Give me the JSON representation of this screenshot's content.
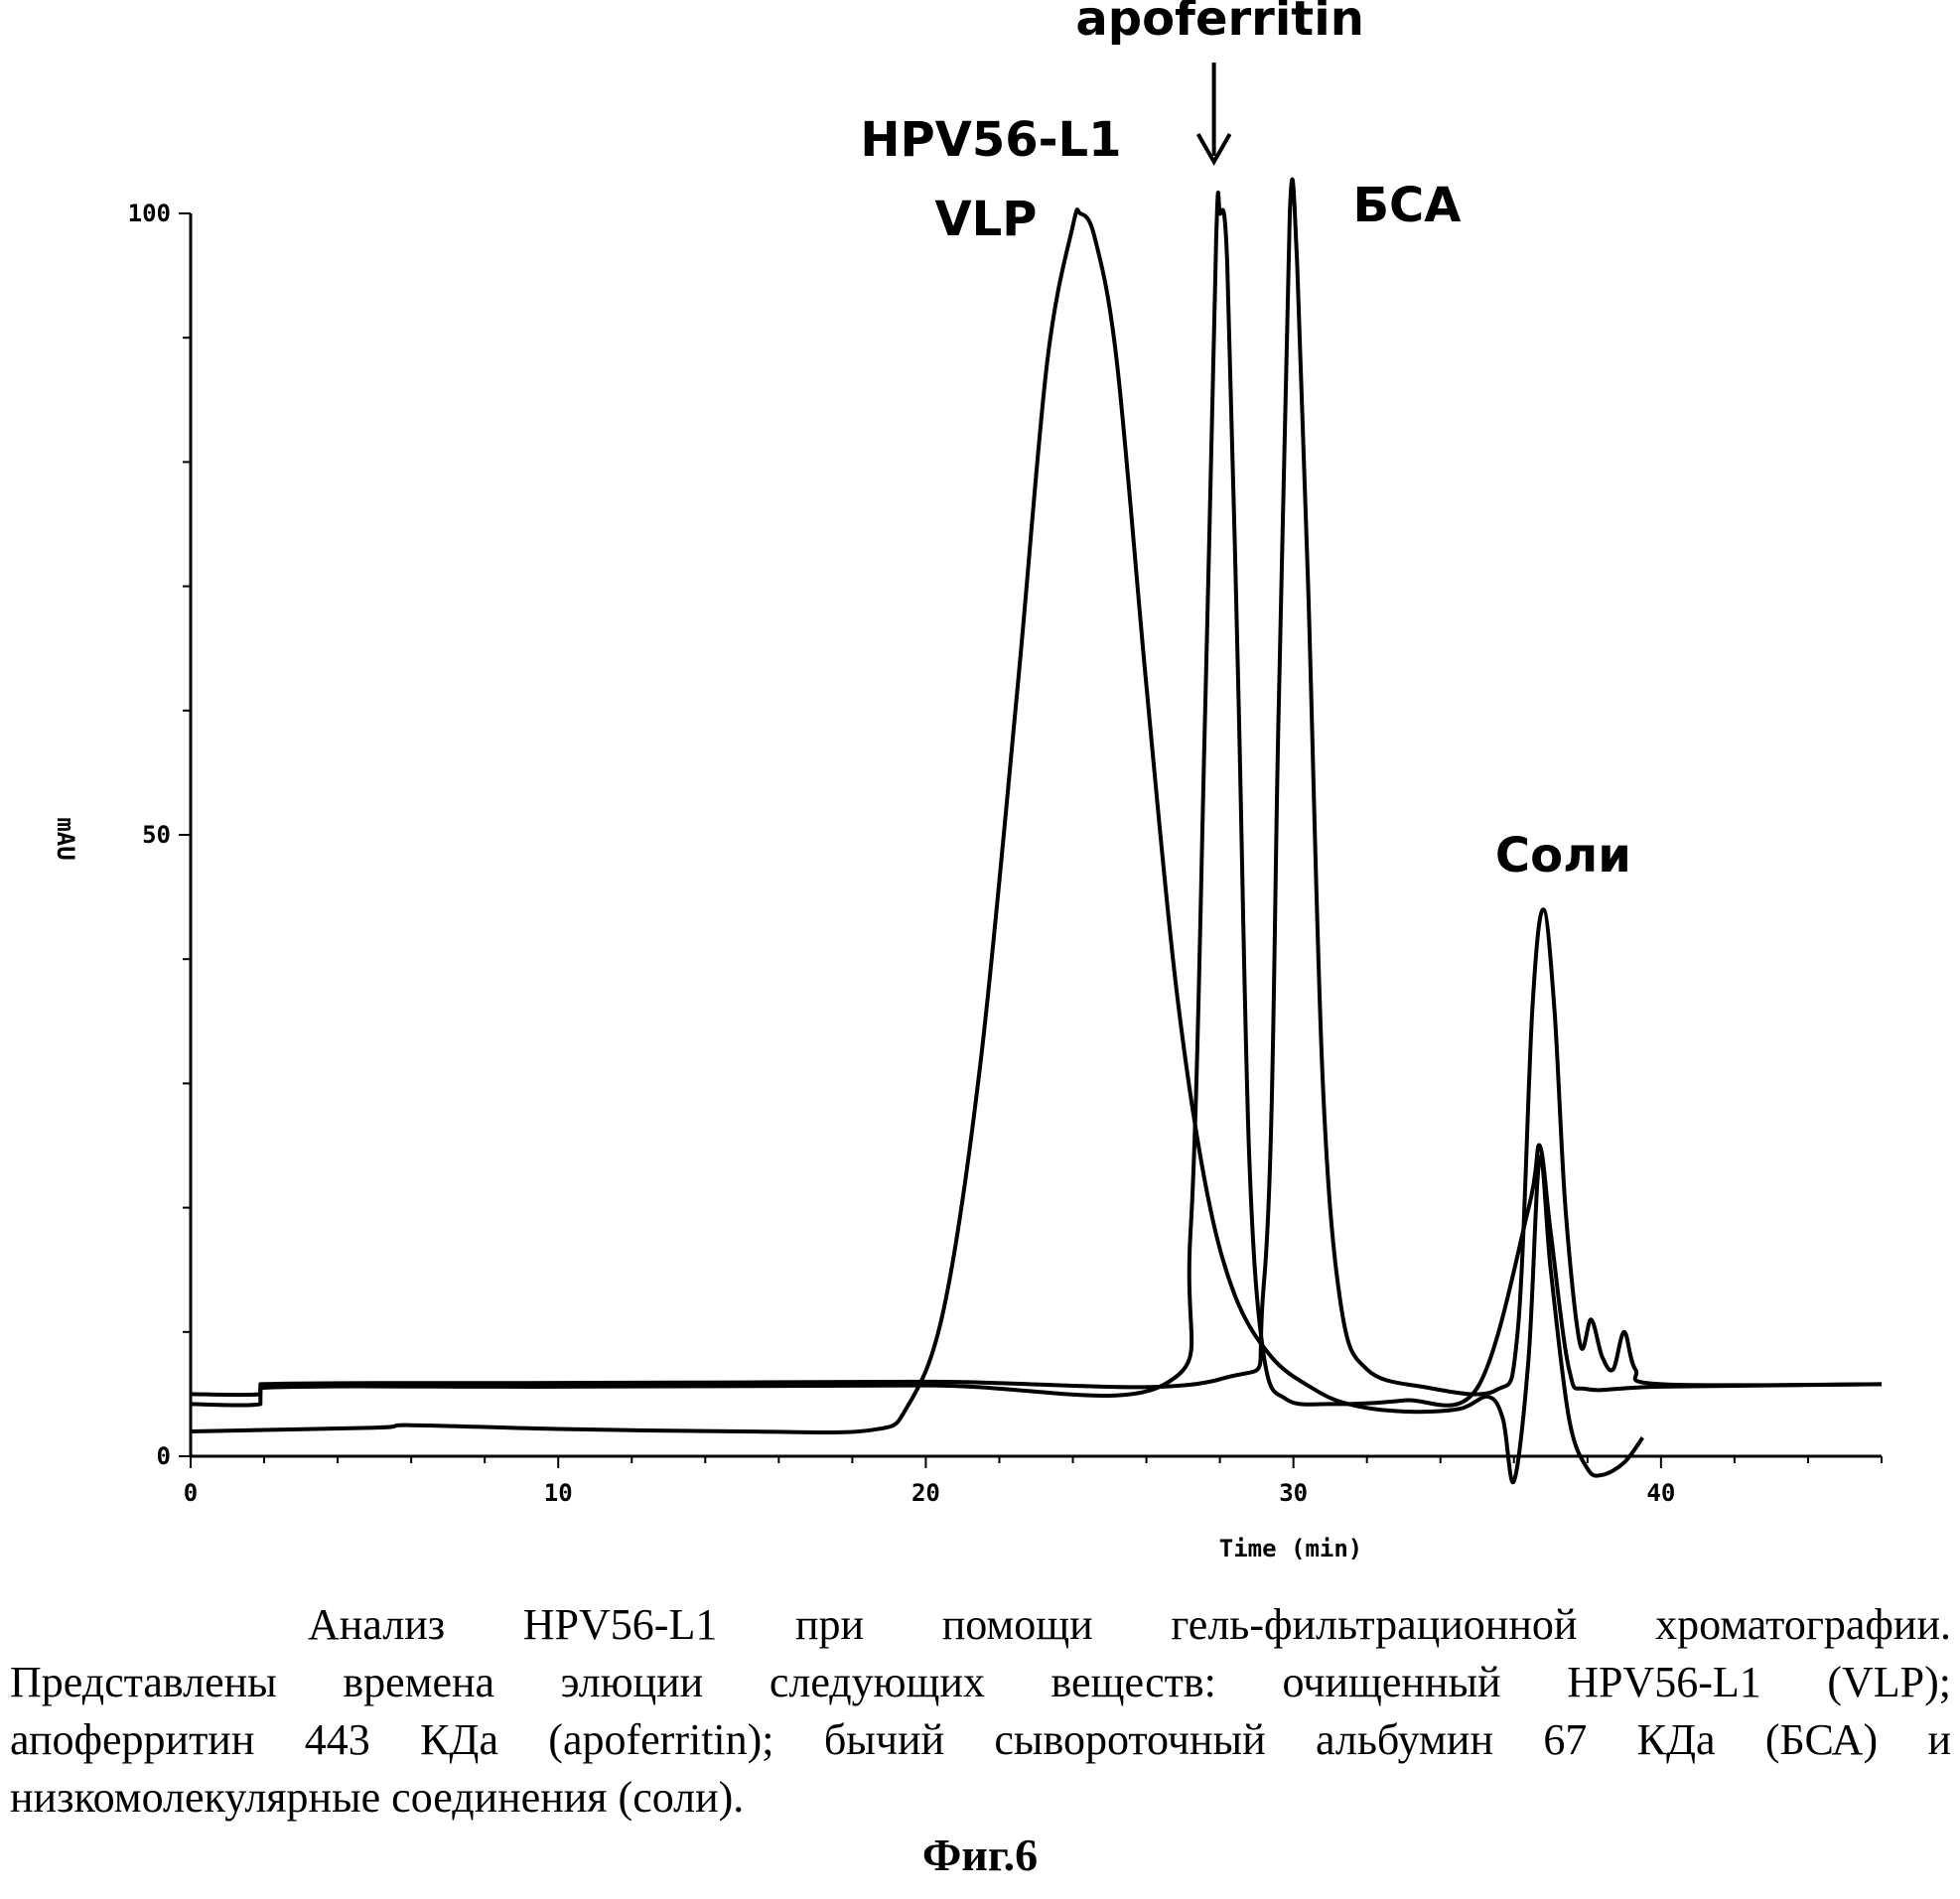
{
  "chart_data": {
    "type": "line",
    "title": "",
    "xlabel": "Time (min)",
    "ylabel": "mAU",
    "xlim": [
      0,
      46
    ],
    "ylim": [
      0,
      100
    ],
    "x_ticks": [
      0,
      10,
      20,
      30,
      40
    ],
    "y_ticks": [
      0,
      50,
      100
    ],
    "grid": false,
    "annotations": [
      {
        "text": "HPV56-L1",
        "x": 24.2,
        "y": 100
      },
      {
        "text": "VLP",
        "x": 24.2,
        "y": 100
      },
      {
        "text": "apoferritin",
        "x": 28.0,
        "y": 100,
        "arrow": true
      },
      {
        "text": "БСА",
        "x": 29.9,
        "y": 100
      },
      {
        "text": "Соли",
        "x": 36.8,
        "y": 44
      }
    ],
    "series": [
      {
        "values_xy": [
          [
            0,
            2.0
          ],
          [
            5,
            2.3
          ],
          [
            6,
            2.5
          ],
          [
            10,
            2.2
          ],
          [
            15,
            2.0
          ],
          [
            18.5,
            2.1
          ],
          [
            19.5,
            4
          ],
          [
            20.5,
            12
          ],
          [
            21.5,
            32
          ],
          [
            22.5,
            62
          ],
          [
            23.3,
            88
          ],
          [
            24.0,
            99
          ],
          [
            24.2,
            100
          ],
          [
            24.6,
            98
          ],
          [
            25.2,
            88
          ],
          [
            26.0,
            62
          ],
          [
            26.8,
            38
          ],
          [
            27.6,
            22
          ],
          [
            28.4,
            13
          ],
          [
            29.4,
            8
          ],
          [
            30.5,
            5.5
          ],
          [
            31.5,
            4.2
          ],
          [
            33,
            3.6
          ],
          [
            34.5,
            3.8
          ],
          [
            35.3,
            4.8
          ],
          [
            35.7,
            3
          ],
          [
            36.0,
            -2
          ],
          [
            36.4,
            8
          ],
          [
            36.7,
            24
          ],
          [
            37.0,
            15
          ],
          [
            37.5,
            3
          ],
          [
            38.0,
            -1
          ],
          [
            38.4,
            -1.5
          ],
          [
            39.0,
            -0.5
          ],
          [
            39.5,
            1.5
          ]
        ]
      },
      {
        "values_xy": [
          [
            0,
            4.2
          ],
          [
            1.9,
            4.2
          ],
          [
            1.9,
            5.5
          ],
          [
            10,
            5.6
          ],
          [
            20,
            5.7
          ],
          [
            26.5,
            5.8
          ],
          [
            27.2,
            18
          ],
          [
            27.6,
            60
          ],
          [
            27.9,
            98
          ],
          [
            28.0,
            100
          ],
          [
            28.2,
            96
          ],
          [
            28.5,
            62
          ],
          [
            28.8,
            24
          ],
          [
            29.2,
            8
          ],
          [
            29.8,
            4.6
          ],
          [
            31,
            4.2
          ],
          [
            33,
            4.5
          ],
          [
            35,
            5.5
          ],
          [
            36.4,
            20
          ],
          [
            36.7,
            25
          ],
          [
            37.0,
            18
          ],
          [
            37.5,
            7
          ],
          [
            38.0,
            5.4
          ],
          [
            40,
            5.6
          ],
          [
            46,
            5.8
          ]
        ]
      },
      {
        "values_xy": [
          [
            0,
            5
          ],
          [
            1.9,
            5
          ],
          [
            1.9,
            5.8
          ],
          [
            10,
            5.9
          ],
          [
            20,
            6
          ],
          [
            28,
            6.2
          ],
          [
            29.2,
            14
          ],
          [
            29.6,
            60
          ],
          [
            29.9,
            100
          ],
          [
            30.1,
            96
          ],
          [
            30.4,
            70
          ],
          [
            30.8,
            30
          ],
          [
            31.3,
            12
          ],
          [
            32,
            7
          ],
          [
            33.5,
            5.6
          ],
          [
            35.5,
            5.3
          ],
          [
            36.1,
            10
          ],
          [
            36.5,
            36
          ],
          [
            36.8,
            44
          ],
          [
            37.1,
            36
          ],
          [
            37.4,
            20
          ],
          [
            37.8,
            9
          ],
          [
            38.1,
            11
          ],
          [
            38.4,
            8
          ],
          [
            38.7,
            7
          ],
          [
            39.0,
            10
          ],
          [
            39.3,
            7
          ],
          [
            40,
            5.8
          ],
          [
            46,
            5.8
          ]
        ]
      }
    ]
  },
  "caption": {
    "line1": "Анализ HPV56-L1 при помощи гель-фильтрационной хроматографии.",
    "line2": "Представлены времена элюции следующих веществ: очищенный HPV56-L1 (VLP);",
    "line3": "апоферритин 443 КДа (apoferritin); бычий сывороточный альбумин 67 КДа (БСА) и",
    "line4": "низкомолекулярные соединения (соли)."
  },
  "figure_label": "Фиг.6"
}
